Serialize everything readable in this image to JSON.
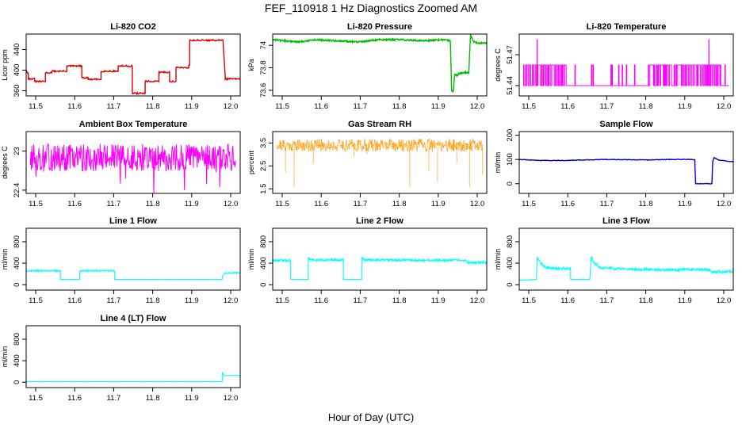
{
  "title": "FEF_110918  1 Hz Diagnostics Zoomed AM",
  "xlabel": "Hour of Day (UTC)",
  "chart_data": [
    {
      "type": "line",
      "title": "Li-820 CO2",
      "ylabel": "Licor ppm",
      "color": "#dd0000",
      "xlim": [
        11.5,
        12.0
      ],
      "ylim": [
        350,
        470
      ],
      "yticks": [
        360,
        400,
        440
      ],
      "x": [
        11.5,
        11.505,
        11.505,
        11.52,
        11.52,
        11.545,
        11.545,
        11.56,
        11.56,
        11.595,
        11.595,
        11.63,
        11.63,
        11.645,
        11.645,
        11.675,
        11.675,
        11.715,
        11.715,
        11.748,
        11.748,
        11.778,
        11.778,
        11.81,
        11.81,
        11.835,
        11.835,
        11.85,
        11.85,
        11.88,
        11.88,
        11.882,
        11.882,
        11.96,
        11.96,
        11.965,
        11.965,
        12.0
      ],
      "values": [
        400,
        393,
        383,
        383,
        378,
        378,
        395,
        395,
        398,
        398,
        408,
        408,
        385,
        385,
        382,
        382,
        398,
        398,
        408,
        408,
        355,
        355,
        378,
        378,
        396,
        396,
        378,
        378,
        405,
        405,
        410,
        410,
        458,
        458,
        455,
        388,
        383,
        383
      ]
    },
    {
      "type": "line",
      "title": "Li-820 Pressure",
      "ylabel": "kPa",
      "color": "#00bb00",
      "xlim": [
        11.5,
        12.0
      ],
      "ylim": [
        73.55,
        74.1
      ],
      "yticks": [
        73.6,
        73.8,
        74.0
      ],
      "x": [
        11.5,
        11.53,
        11.56,
        11.6,
        11.65,
        11.7,
        11.75,
        11.8,
        11.85,
        11.9,
        11.915,
        11.918,
        11.922,
        11.925,
        11.932,
        11.935,
        11.955,
        11.958,
        11.962,
        11.97,
        11.98,
        12.0
      ],
      "values": [
        74.05,
        74.04,
        74.03,
        74.05,
        74.04,
        74.03,
        74.05,
        74.05,
        74.04,
        74.05,
        74.04,
        73.6,
        73.59,
        73.74,
        73.73,
        73.75,
        73.76,
        73.75,
        74.09,
        74.03,
        74.02,
        74.02
      ]
    },
    {
      "type": "line",
      "title": "Li-820 Temperature",
      "ylabel": "degrees C",
      "color": "#ff00ff",
      "xlim": [
        11.5,
        12.0
      ],
      "ylim": [
        51.43,
        51.49
      ],
      "yticks": [
        51.44,
        51.47
      ],
      "x": [
        11.5,
        12.0
      ],
      "values": [
        51.44,
        51.44
      ]
    },
    {
      "type": "line",
      "title": "Ambient Box Temperature",
      "ylabel": "degrees C",
      "color": "#ff00ff",
      "xlim": [
        11.5,
        12.0
      ],
      "ylim": [
        22.35,
        23.3
      ],
      "yticks": [
        22.4,
        23.0
      ],
      "x": [
        11.5,
        12.0
      ],
      "values": [
        22.9,
        22.9
      ]
    },
    {
      "type": "line",
      "title": "Gas Stream RH",
      "ylabel": "percent",
      "color": "#ff9900",
      "xlim": [
        11.5,
        12.0
      ],
      "ylim": [
        1.3,
        4.0
      ],
      "yticks": [
        1.5,
        2.5,
        3.5
      ],
      "x": [
        11.5,
        12.0
      ],
      "values": [
        3.4,
        3.4
      ]
    },
    {
      "type": "line",
      "title": "Sample Flow",
      "ylabel": "ml/min",
      "color": "#0000cc",
      "xlim": [
        11.5,
        12.0
      ],
      "ylim": [
        -40,
        215
      ],
      "yticks": [
        0,
        100,
        200
      ],
      "x": [
        11.5,
        11.55,
        11.6,
        11.7,
        11.8,
        11.85,
        11.9,
        11.91,
        11.912,
        11.95,
        11.952,
        11.955,
        11.965,
        12.0
      ],
      "values": [
        100,
        96,
        96,
        100,
        98,
        100,
        100,
        99,
        0,
        0,
        92,
        108,
        98,
        90
      ]
    },
    {
      "type": "line",
      "title": "Line 1 Flow",
      "ylabel": "ml/min",
      "color": "#00ffff",
      "xlim": [
        11.5,
        12.0
      ],
      "ylim": [
        -100,
        1050
      ],
      "yticks": [
        0,
        400,
        800
      ],
      "x": [
        11.5,
        11.58,
        11.58,
        11.625,
        11.625,
        11.707,
        11.707,
        11.958,
        11.958,
        11.965,
        12.0
      ],
      "values": [
        260,
        260,
        100,
        100,
        260,
        260,
        100,
        100,
        160,
        220,
        220
      ]
    },
    {
      "type": "line",
      "title": "Line 2 Flow",
      "ylabel": "ml/min",
      "color": "#00ffff",
      "xlim": [
        11.5,
        12.0
      ],
      "ylim": [
        -100,
        1050
      ],
      "yticks": [
        0,
        400,
        800
      ],
      "x": [
        11.5,
        11.542,
        11.542,
        11.583,
        11.583,
        11.59,
        11.665,
        11.665,
        11.708,
        11.708,
        11.715,
        11.95,
        11.955,
        12.0
      ],
      "values": [
        450,
        450,
        100,
        100,
        500,
        460,
        460,
        100,
        100,
        510,
        460,
        450,
        410,
        410
      ]
    },
    {
      "type": "line",
      "title": "Line 3 Flow",
      "ylabel": "ml/min",
      "color": "#00ffff",
      "xlim": [
        11.5,
        12.0
      ],
      "ylim": [
        -100,
        1050
      ],
      "yticks": [
        0,
        400,
        800
      ],
      "x": [
        11.5,
        11.54,
        11.542,
        11.55,
        11.56,
        11.58,
        11.62,
        11.62,
        11.665,
        11.668,
        11.675,
        11.69,
        11.72,
        11.8,
        11.9,
        11.945,
        11.95,
        12.0
      ],
      "values": [
        80,
        100,
        500,
        400,
        330,
        300,
        300,
        100,
        100,
        520,
        400,
        320,
        300,
        280,
        280,
        280,
        240,
        240
      ]
    },
    {
      "type": "line",
      "title": "Line 4 (LT) Flow",
      "ylabel": "ml/min",
      "color": "#00ffff",
      "xlim": [
        11.5,
        12.0
      ],
      "ylim": [
        -100,
        1050
      ],
      "yticks": [
        0,
        400,
        800
      ],
      "x": [
        11.5,
        11.958,
        11.958,
        11.962,
        11.965,
        12.0
      ],
      "values": [
        10,
        10,
        190,
        120,
        125,
        125
      ]
    }
  ]
}
